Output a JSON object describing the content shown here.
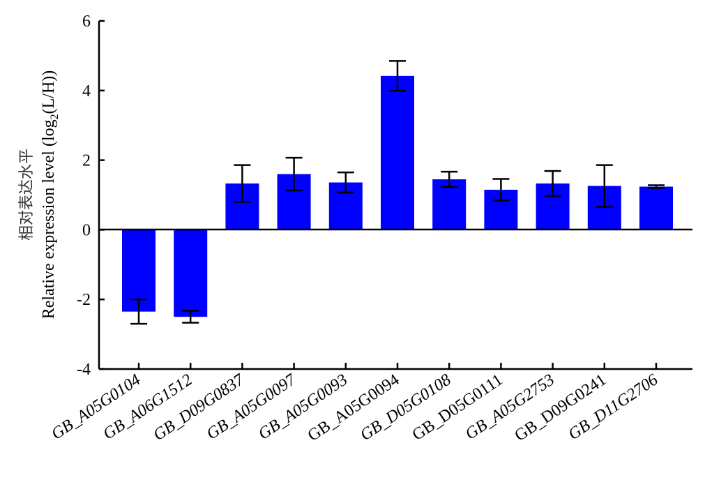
{
  "chart_data": {
    "type": "bar",
    "ylabel_cn": "相对表达水平",
    "ylabel": "Relative expression level (log",
    "ylabel_sub": "2",
    "ylabel_tail": "(L/H))",
    "ylim": [
      -4,
      6
    ],
    "yticks": [
      "-4",
      "-2",
      "0",
      "2",
      "4",
      "6"
    ],
    "ytick_values": [
      -4,
      -2,
      0,
      2,
      4,
      6
    ],
    "bar_color": "#0000ff",
    "categories": [
      "GB_A05G0104",
      "GB_A06G1512",
      "GB_D09G0837",
      "GB_A05G0097",
      "GB_A05G0093",
      "GB_A05G0094",
      "GB_D05G0108",
      "GB_D05G0111",
      "GB_A05G2753",
      "GB_D09G0241",
      "GB_D11G2706"
    ],
    "italic": [
      true,
      true,
      true,
      true,
      true,
      false,
      true,
      false,
      true,
      false,
      true
    ],
    "values": [
      -2.35,
      -2.5,
      1.33,
      1.6,
      1.36,
      4.42,
      1.45,
      1.15,
      1.33,
      1.26,
      1.24
    ],
    "errors": [
      0.35,
      0.17,
      0.53,
      0.47,
      0.29,
      0.43,
      0.22,
      0.31,
      0.36,
      0.6,
      0.04
    ],
    "grid": false,
    "legend": "none"
  }
}
